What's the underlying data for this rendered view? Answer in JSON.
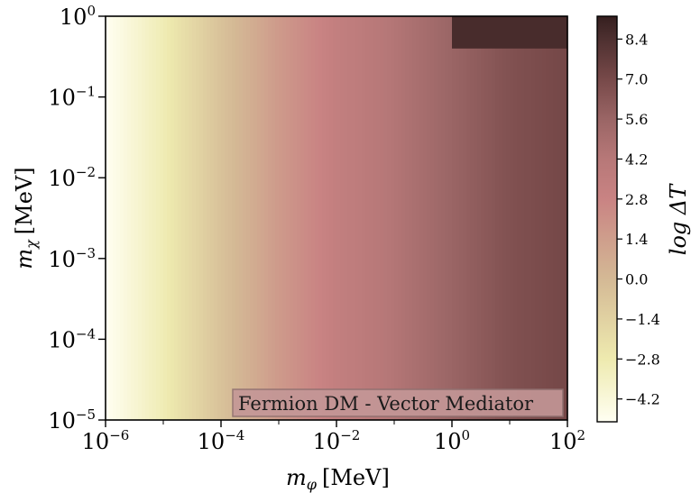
{
  "chart_data": {
    "type": "heatmap",
    "title": "",
    "annotation": "Fermion DM - Vector Mediator",
    "x_axis": {
      "label_symbol": "m",
      "label_subscript": "φ",
      "label_unit": "[MeV]",
      "scale": "log",
      "lim": [
        1e-06,
        100
      ],
      "ticks": [
        {
          "base": "10",
          "exp": "−6"
        },
        {
          "base": "10",
          "exp": "−4"
        },
        {
          "base": "10",
          "exp": "−2"
        },
        {
          "base": "10",
          "exp": "0"
        },
        {
          "base": "10",
          "exp": "2"
        }
      ]
    },
    "y_axis": {
      "label_symbol": "m",
      "label_subscript": "χ",
      "label_unit": "[MeV]",
      "scale": "log",
      "lim": [
        1e-05,
        1
      ],
      "ticks": [
        {
          "base": "10",
          "exp": "−5"
        },
        {
          "base": "10",
          "exp": "−4"
        },
        {
          "base": "10",
          "exp": "−3"
        },
        {
          "base": "10",
          "exp": "−2"
        },
        {
          "base": "10",
          "exp": "−1"
        },
        {
          "base": "10",
          "exp": "0"
        }
      ]
    },
    "colorbar": {
      "label": "log ΔT",
      "range": [
        -5.0,
        9.2
      ],
      "ticks": [
        "−4.2",
        "−2.8",
        "−1.4",
        "0.0",
        "1.4",
        "2.8",
        "4.2",
        "5.6",
        "7.0",
        "8.4"
      ],
      "tick_values": [
        -4.2,
        -2.8,
        -1.4,
        0.0,
        1.4,
        2.8,
        4.2,
        5.6,
        7.0,
        8.4
      ],
      "colormap": [
        {
          "v": -5.0,
          "color": "#fffff2"
        },
        {
          "v": -2.8,
          "color": "#eeeaaf"
        },
        {
          "v": 0.0,
          "color": "#d4b995"
        },
        {
          "v": 2.8,
          "color": "#c98383"
        },
        {
          "v": 4.2,
          "color": "#b77878"
        },
        {
          "v": 5.6,
          "color": "#9a6565"
        },
        {
          "v": 7.0,
          "color": "#774949"
        },
        {
          "v": 8.4,
          "color": "#4e3030"
        },
        {
          "v": 9.2,
          "color": "#351f1f"
        }
      ]
    },
    "field": {
      "description_points": [
        {
          "log_mphi": -6,
          "value": -5.0
        },
        {
          "log_mphi": -5,
          "value": -3.0
        },
        {
          "log_mphi": -4,
          "value": -0.5
        },
        {
          "log_mphi": -3,
          "value": 1.6
        },
        {
          "log_mphi": -2,
          "value": 3.3
        },
        {
          "log_mphi": -1,
          "value": 4.4
        },
        {
          "log_mphi": 0,
          "value": 5.6
        },
        {
          "log_mphi": 1,
          "value": 6.6
        },
        {
          "log_mphi": 2,
          "value": 7.1
        }
      ],
      "plateau_region": {
        "log_mphi_min": 0,
        "log_mchi_min": -0.4,
        "value": 8.6
      }
    }
  }
}
